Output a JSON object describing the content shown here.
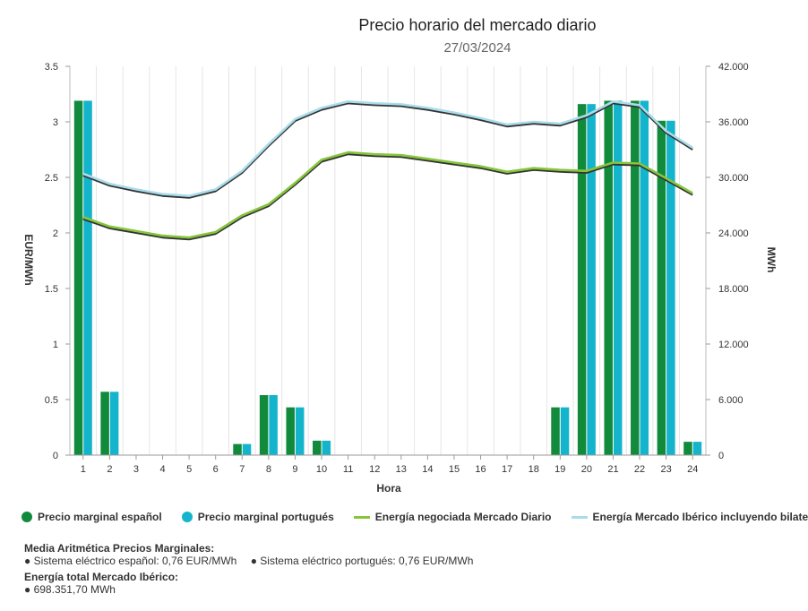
{
  "chart_data": {
    "type": "bar+line",
    "title": "Precio horario del mercado diario",
    "subtitle": "27/03/2024",
    "xlabel": "Hora",
    "ylabel_left": "EUR/MWh",
    "ylabel_right": "MWh",
    "ylim_left": [
      0,
      3.5
    ],
    "ylim_right": [
      0,
      42000
    ],
    "yticks_left": [
      "0",
      "0.5",
      "1",
      "1.5",
      "2",
      "2.5",
      "3",
      "3.5"
    ],
    "yticks_right": [
      "0",
      "6.000",
      "12.000",
      "18.000",
      "24.000",
      "30.000",
      "36.000",
      "42.000"
    ],
    "categories": [
      "1",
      "2",
      "3",
      "4",
      "5",
      "6",
      "7",
      "8",
      "9",
      "10",
      "11",
      "12",
      "13",
      "14",
      "15",
      "16",
      "17",
      "18",
      "19",
      "20",
      "21",
      "22",
      "23",
      "24"
    ],
    "series": [
      {
        "name": "Precio marginal español",
        "type": "bar",
        "axis": "left",
        "color": "#118a3c",
        "values": [
          3.19,
          0.57,
          0,
          0,
          0,
          0,
          0.1,
          0.54,
          0.43,
          0.13,
          0,
          0,
          0,
          0,
          0,
          0,
          0,
          0,
          0.43,
          3.16,
          3.19,
          3.19,
          3.01,
          0.12
        ]
      },
      {
        "name": "Precio marginal portugués",
        "type": "bar",
        "axis": "left",
        "color": "#14b4cc",
        "values": [
          3.19,
          0.57,
          0,
          0,
          0,
          0,
          0.1,
          0.54,
          0.43,
          0.13,
          0,
          0,
          0,
          0,
          0,
          0,
          0,
          0,
          0.43,
          3.16,
          3.19,
          3.19,
          3.01,
          0.12
        ]
      },
      {
        "name": "Energía negociada Mercado Diario",
        "type": "line",
        "axis": "right",
        "color": "#86c53c",
        "values": [
          25700,
          24700,
          24200,
          23700,
          23500,
          24100,
          25900,
          27100,
          29400,
          31900,
          32700,
          32500,
          32400,
          32000,
          31600,
          31200,
          30600,
          31000,
          30800,
          30700,
          31600,
          31500,
          29900,
          28300
        ]
      },
      {
        "name": "Energía Mercado Ibérico incluyendo bilaterales",
        "type": "line",
        "axis": "right",
        "color": "#a8dcea",
        "values": [
          30400,
          29300,
          28700,
          28200,
          28000,
          28700,
          30700,
          33600,
          36300,
          37500,
          38200,
          38000,
          37900,
          37500,
          37000,
          36400,
          35700,
          36000,
          35800,
          36700,
          38200,
          37800,
          35000,
          33200
        ]
      }
    ],
    "legend_position": "bottom"
  },
  "footer": {
    "media_heading": "Media Aritmética Precios Marginales:",
    "media_es": "● Sistema eléctrico español: 0,76 EUR/MWh",
    "media_pt": "● Sistema eléctrico portugués: 0,76 EUR/MWh",
    "energia_heading": "Energía total Mercado Ibérico:",
    "energia_value": "● 698.351,70 MWh"
  }
}
